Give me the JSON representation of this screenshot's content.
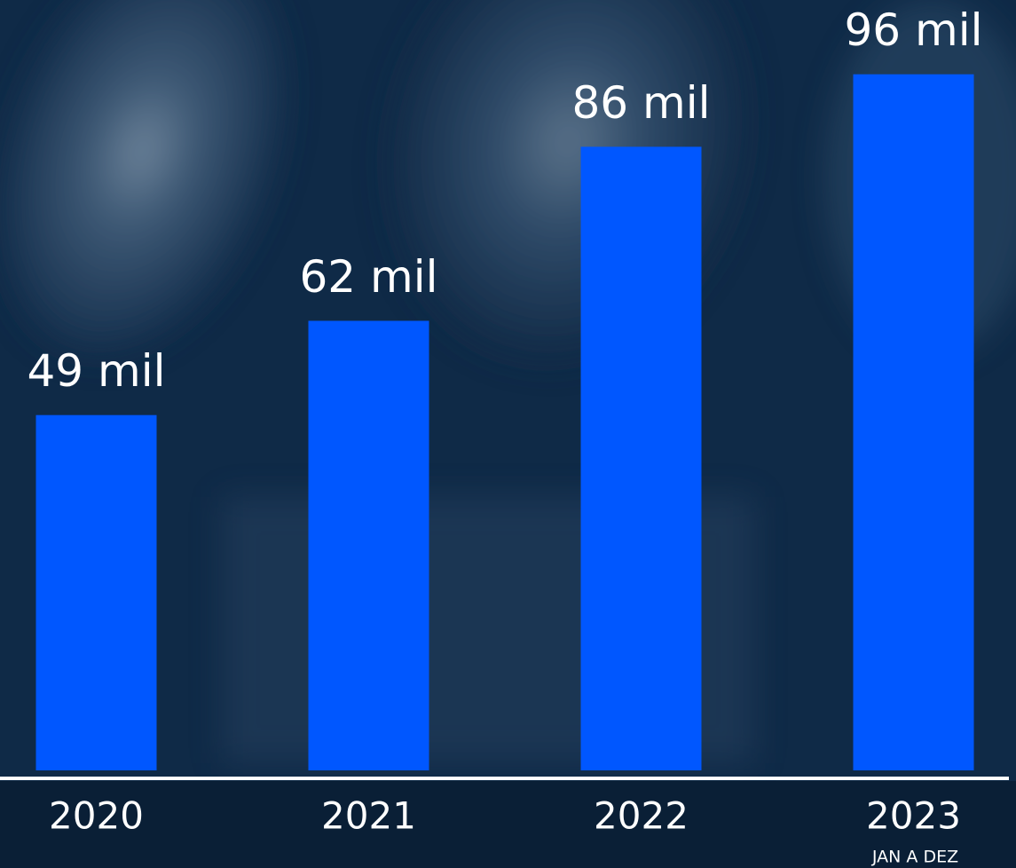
{
  "chart_data": {
    "type": "bar",
    "categories": [
      "2020",
      "2021",
      "2022",
      "2023"
    ],
    "values": [
      49,
      62,
      86,
      96
    ],
    "value_labels": [
      "49 mil",
      "62 mil",
      "86 mil",
      "96 mil"
    ],
    "annotation": "JAN A DEZ",
    "color": "#0057ff",
    "ylim": [
      0,
      100
    ]
  }
}
